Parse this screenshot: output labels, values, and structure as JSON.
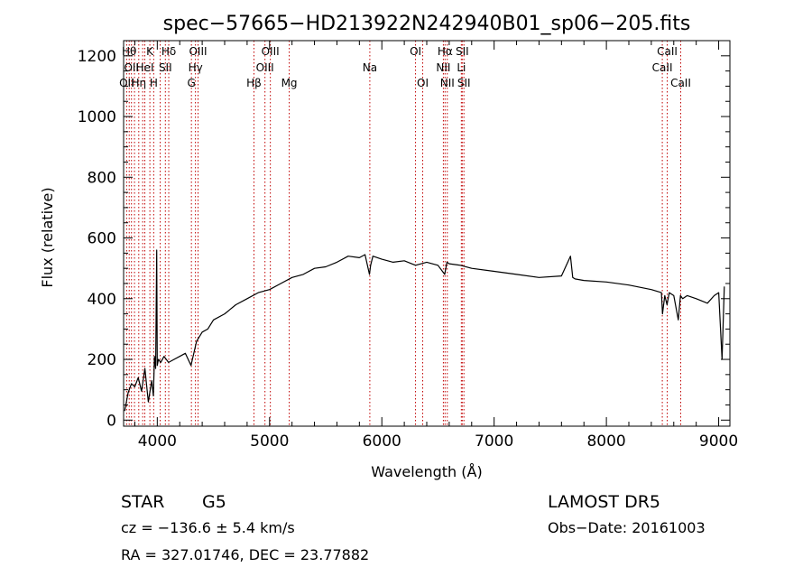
{
  "chart_data": {
    "type": "line",
    "title": "spec−57665−HD213922N242940B01_sp06−205.fits",
    "xlabel": "Wavelength (Å)",
    "ylabel": "Flux (relative)",
    "xlim": [
      3700,
      9100
    ],
    "ylim": [
      -20,
      1250
    ],
    "xticks": [
      4000,
      5000,
      6000,
      7000,
      8000,
      9000
    ],
    "yticks": [
      0,
      200,
      400,
      600,
      800,
      1000,
      1200
    ],
    "grid": false,
    "series": [
      {
        "color": "#000000",
        "x": [
          3710,
          3740,
          3770,
          3800,
          3830,
          3860,
          3890,
          3920,
          3950,
          3965,
          3975,
          3985,
          3995,
          4000,
          4010,
          4030,
          4060,
          4100,
          4150,
          4200,
          4250,
          4300,
          4350,
          4400,
          4450,
          4500,
          4600,
          4700,
          4800,
          4900,
          5000,
          5100,
          5200,
          5300,
          5400,
          5500,
          5600,
          5700,
          5800,
          5850,
          5890,
          5900,
          5920,
          6000,
          6100,
          6200,
          6300,
          6400,
          6500,
          6560,
          6580,
          6600,
          6700,
          6800,
          7000,
          7200,
          7400,
          7600,
          7680,
          7700,
          7720,
          7800,
          8000,
          8200,
          8400,
          8490,
          8500,
          8520,
          8540,
          8560,
          8600,
          8640,
          8660,
          8680,
          8720,
          8800,
          8900,
          8960,
          9000,
          9030,
          9050
        ],
        "y": [
          30,
          90,
          120,
          110,
          140,
          95,
          170,
          60,
          130,
          80,
          210,
          170,
          560,
          180,
          200,
          190,
          210,
          190,
          200,
          210,
          220,
          180,
          260,
          290,
          300,
          330,
          350,
          380,
          400,
          420,
          430,
          450,
          470,
          480,
          500,
          505,
          520,
          540,
          535,
          545,
          480,
          510,
          540,
          530,
          520,
          525,
          510,
          520,
          510,
          480,
          520,
          515,
          510,
          500,
          490,
          480,
          470,
          475,
          540,
          470,
          465,
          460,
          455,
          445,
          430,
          420,
          350,
          410,
          380,
          420,
          410,
          330,
          410,
          400,
          410,
          400,
          385,
          410,
          420,
          200,
          440
        ]
      }
    ],
    "lines": [
      {
        "x": 3727,
        "label": "OII",
        "row": 3
      },
      {
        "x": 3750,
        "label": "Hθ",
        "row": 1
      },
      {
        "x": 3770,
        "label": "OII",
        "row": 2
      },
      {
        "x": 3797,
        "label": "",
        "row": 0
      },
      {
        "x": 3835,
        "label": "Hη",
        "row": 3
      },
      {
        "x": 3870,
        "label": "",
        "row": 0
      },
      {
        "x": 3889,
        "label": "HeI",
        "row": 2
      },
      {
        "x": 3934,
        "label": "K",
        "row": 1
      },
      {
        "x": 3968,
        "label": "H",
        "row": 3
      },
      {
        "x": 4026,
        "label": "",
        "row": 0
      },
      {
        "x": 4072,
        "label": "SII",
        "row": 2
      },
      {
        "x": 4102,
        "label": "Hδ",
        "row": 1
      },
      {
        "x": 4304,
        "label": "G",
        "row": 3
      },
      {
        "x": 4340,
        "label": "Hγ",
        "row": 2
      },
      {
        "x": 4363,
        "label": "OIII",
        "row": 1
      },
      {
        "x": 4861,
        "label": "Hβ",
        "row": 3
      },
      {
        "x": 4959,
        "label": "OIII",
        "row": 2
      },
      {
        "x": 5007,
        "label": "OIII",
        "row": 1
      },
      {
        "x": 5175,
        "label": "Mg",
        "row": 3
      },
      {
        "x": 5893,
        "label": "Na",
        "row": 2
      },
      {
        "x": 6300,
        "label": "OI",
        "row": 1
      },
      {
        "x": 6364,
        "label": "OI",
        "row": 3
      },
      {
        "x": 6548,
        "label": "NII",
        "row": 2
      },
      {
        "x": 6563,
        "label": "Hα",
        "row": 1
      },
      {
        "x": 6583,
        "label": "NII",
        "row": 3
      },
      {
        "x": 6708,
        "label": "Li",
        "row": 2
      },
      {
        "x": 6716,
        "label": "SII",
        "row": 1
      },
      {
        "x": 6731,
        "label": "SII",
        "row": 3
      },
      {
        "x": 8498,
        "label": "CaII",
        "row": 2
      },
      {
        "x": 8542,
        "label": "CaII",
        "row": 1
      },
      {
        "x": 8662,
        "label": "CaII",
        "row": 3
      }
    ]
  },
  "info": {
    "object_class": "STAR",
    "subclass": "G5",
    "survey": "LAMOST DR5",
    "redshift": "cz = −136.6 ± 5.4 km/s",
    "obs_date": "Obs−Date: 20161003",
    "coords": "RA = 327.01746, DEC =  23.77882"
  }
}
